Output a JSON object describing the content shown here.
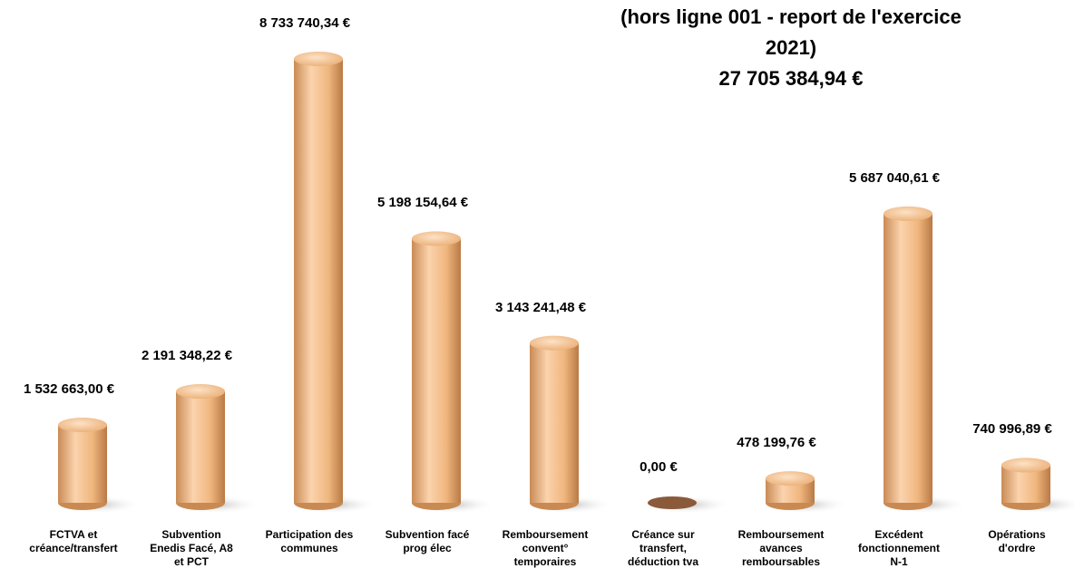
{
  "chart_data": {
    "type": "bar",
    "title": "(hors ligne 001 - report de l'exercice\n2021)",
    "subtitle": "27 705 384,94 €",
    "categories": [
      "FCTVA et\ncréance/transfert",
      "Subvention\nEnedis Facé, A8\net PCT",
      "Participation des\ncommunes",
      "Subvention facé\nprog élec",
      "Remboursement\nconvent°\ntemporaires",
      "Créance sur\ntransfert,\ndéduction tva",
      "Remboursement\navances\nremboursables",
      "Excédent\nfonctionnement\nN-1",
      "Opérations\nd'ordre"
    ],
    "values": [
      1532663.0,
      2191348.22,
      8733740.34,
      5198154.64,
      3143241.48,
      0,
      478199.76,
      5687040.61,
      740996.89
    ],
    "value_labels": [
      "1 532 663,00 €",
      "2 191 348,22 €",
      "8 733 740,34 €",
      "5 198 154,64 €",
      "3 143 241,48 €",
      "0,00 €",
      "478 199,76 €",
      "5 687 040,61 €",
      "740 996,89 €"
    ],
    "color": "#f5bf8c"
  }
}
